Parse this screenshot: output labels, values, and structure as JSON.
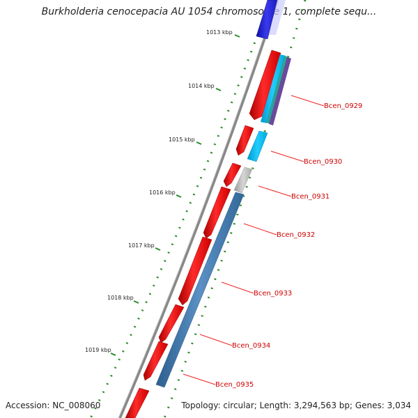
{
  "title": "Burkholderia cenocepacia AU 1054 chromosome 1, complete sequ...",
  "footer": {
    "accession": "Accession: NC_008060",
    "summary": "Topology: circular; Length: 3,294,563 bp; Genes: 3,034"
  },
  "kbp_ticks": [
    {
      "kbp": 1013,
      "label": "1013 kbp"
    },
    {
      "kbp": 1014,
      "label": "1014 kbp"
    },
    {
      "kbp": 1015,
      "label": "1015 kbp"
    },
    {
      "kbp": 1016,
      "label": "1016 kbp"
    },
    {
      "kbp": 1017,
      "label": "1017 kbp"
    },
    {
      "kbp": 1018,
      "label": "1018 kbp"
    },
    {
      "kbp": 1019,
      "label": "1019 kbp"
    }
  ],
  "genes": [
    {
      "label": "Bcen_0929"
    },
    {
      "label": "Bcen_0930"
    },
    {
      "label": "Bcen_0931"
    },
    {
      "label": "Bcen_0932"
    },
    {
      "label": "Bcen_0933"
    },
    {
      "label": "Bcen_0934"
    },
    {
      "label": "Bcen_0935"
    }
  ],
  "colors": {
    "backbone": "#888888",
    "cds": "#ee1111",
    "dot_ticks": "#2a8a2a",
    "label_text": "#cc0000",
    "feature_blue": "#3333dd",
    "feature_steel": "#4a7fb0",
    "feature_cyan": "#00bbee",
    "feature_gray": "#bbbbbb"
  }
}
